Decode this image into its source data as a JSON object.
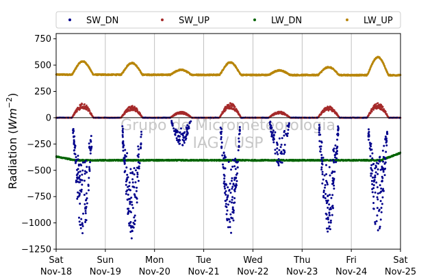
{
  "chart_data": {
    "type": "scatter",
    "title": "",
    "xlabel": "",
    "ylabel": "Radiation (Wm^-2)",
    "ylabel_parts": {
      "main": "Radiation (",
      "italic": "Wm",
      "sup": "−2",
      "close": ")"
    },
    "ylim": [
      -1250,
      800
    ],
    "xlim": [
      "2023-11-18",
      "2023-11-25"
    ],
    "yticks": [
      750,
      500,
      250,
      0,
      -250,
      -500,
      -750,
      -1000,
      -1250
    ],
    "ytick_labels": [
      "750",
      "500",
      "250",
      "0",
      "−250",
      "−500",
      "−750",
      "−1000",
      "−1250"
    ],
    "xtick_labels": [
      {
        "day": "Sat",
        "date": "Nov-18"
      },
      {
        "day": "Sun",
        "date": "Nov-19"
      },
      {
        "day": "Mon",
        "date": "Nov-20"
      },
      {
        "day": "Tue",
        "date": "Nov-21"
      },
      {
        "day": "Wed",
        "date": "Nov-22"
      },
      {
        "day": "Thu",
        "date": "Nov-23"
      },
      {
        "day": "Fri",
        "date": "Nov-24"
      },
      {
        "day": "Sat",
        "date": "Nov-25"
      }
    ],
    "grid": "vertical",
    "zero_line": true,
    "legend_position": "top",
    "watermark": [
      "Grupo de Micrometeorologia",
      "IAG / USP"
    ],
    "series": [
      {
        "name": "SW_DN",
        "color": "#00008b",
        "daily_min": [
          -1150,
          -1160,
          -280,
          -1110,
          -480,
          -1100,
          -1100
        ]
      },
      {
        "name": "SW_UP",
        "color": "#a52a2a",
        "daily_max": [
          140,
          115,
          60,
          140,
          60,
          110,
          140
        ]
      },
      {
        "name": "LW_DN",
        "color": "#006400",
        "baseline": -405,
        "start": -370,
        "end": -335
      },
      {
        "name": "LW_UP",
        "color": "#b8860b",
        "baseline": 410,
        "daily_max": [
          535,
          520,
          455,
          525,
          450,
          480,
          575
        ],
        "end_baseline": 400
      }
    ]
  }
}
